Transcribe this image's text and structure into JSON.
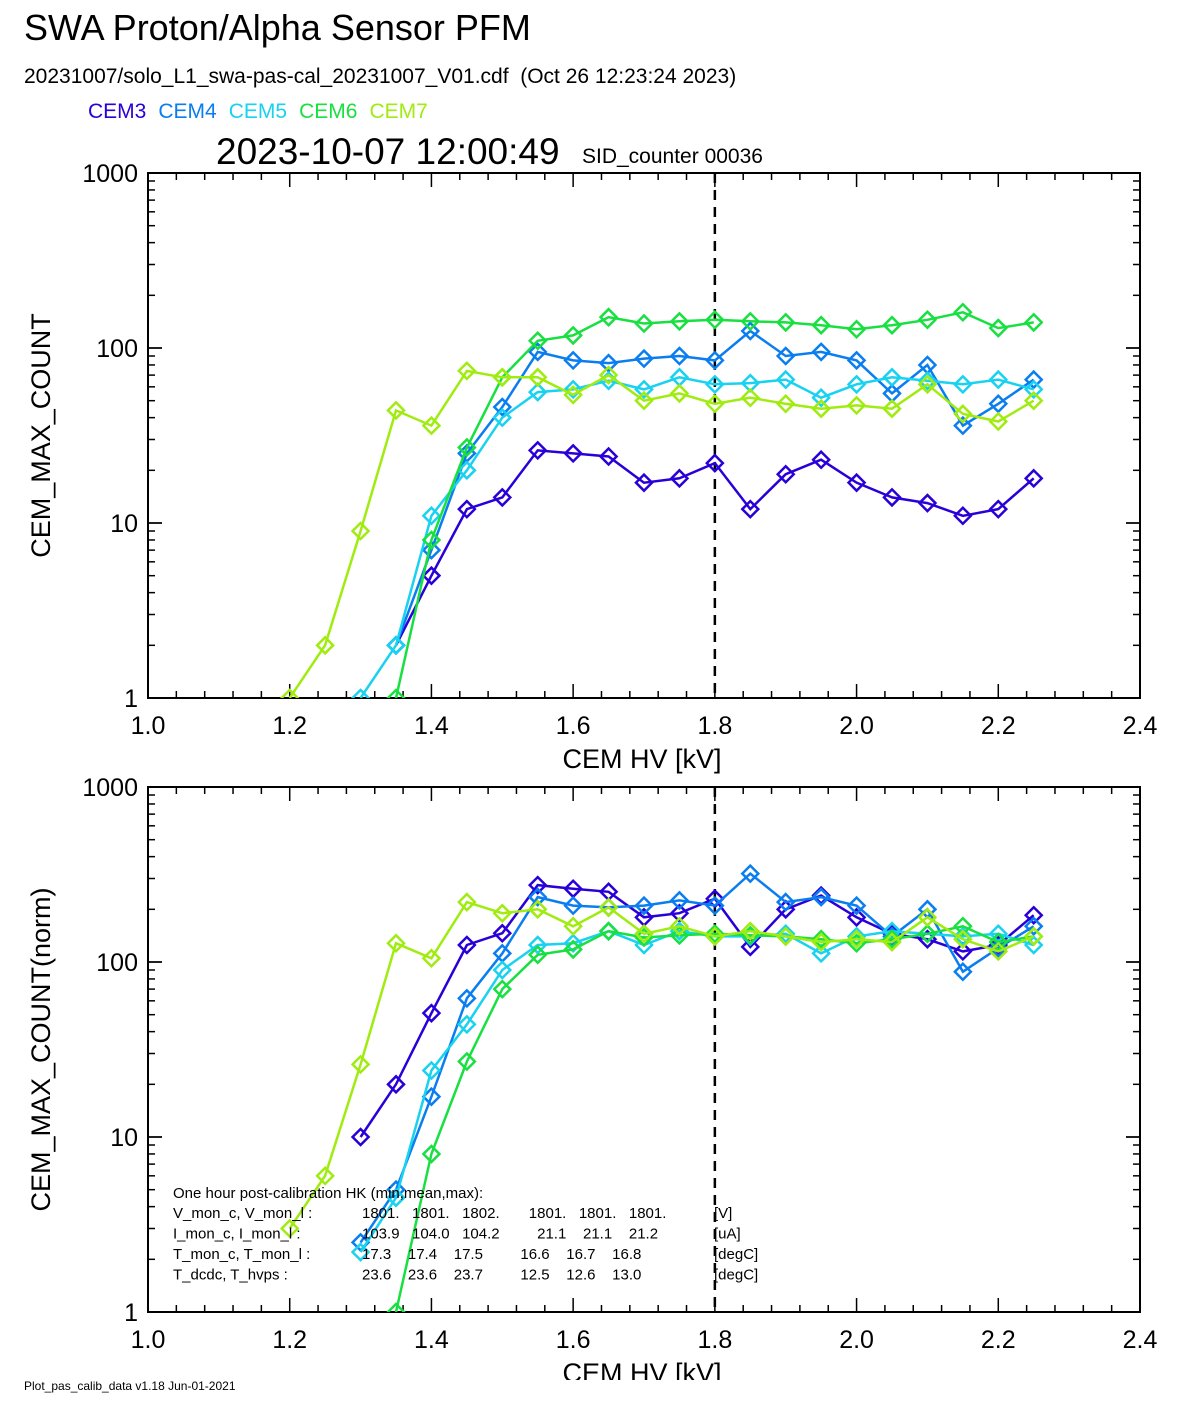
{
  "header": {
    "title": "SWA Proton/Alpha Sensor PFM",
    "subtitle": "20231007/solo_L1_swa-pas-cal_20231007_V01.cdf  (Oct 26 12:23:24 2023)",
    "timestamp": "2023-10-07 12:00:49",
    "sid_counter": "SID_counter 00036"
  },
  "legend": [
    {
      "name": "CEM3",
      "color": "#2a00d8"
    },
    {
      "name": "CEM4",
      "color": "#0a7ef0"
    },
    {
      "name": "CEM5",
      "color": "#18d2f0"
    },
    {
      "name": "CEM6",
      "color": "#18e040"
    },
    {
      "name": "CEM7",
      "color": "#a0ec10"
    }
  ],
  "info_box": {
    "heading": "One hour post-calibration HK (min,mean,max):",
    "rows": [
      {
        "label": "V_mon_c, V_mon_l :",
        "values": "1801.   1801.   1802.       1801.   1801.   1801.",
        "unit": "[V]"
      },
      {
        "label": "I_mon_c,  I_mon_l :",
        "values": "103.9   104.0   104.2         21.1    21.1    21.2",
        "unit": "[uA]"
      },
      {
        "label": "T_mon_c, T_mon_l :",
        "values": "17.3    17.4    17.5         16.6    16.7    16.8",
        "unit": "[degC]"
      },
      {
        "label": "T_dcdc,    T_hvps :",
        "values": "23.6    23.6    23.7         12.5    12.6    13.0",
        "unit": "[degC]"
      }
    ]
  },
  "footer": "Plot_pas_calib_data v1.18 Jun-01-2021",
  "chart_data": [
    {
      "type": "line",
      "log_y": true,
      "xlabel": "CEM HV [kV]",
      "ylabel": "CEM_MAX_COUNT",
      "xlim": [
        1.0,
        2.4
      ],
      "ylim": [
        1,
        1000
      ],
      "xticks": [
        "1.0",
        "1.2",
        "1.4",
        "1.6",
        "1.8",
        "2.0",
        "2.2",
        "2.4"
      ],
      "yticks": [
        "1",
        "10",
        "100",
        "1000"
      ],
      "marker": "diamond",
      "reference_line_x": 1.8,
      "x": [
        1.2,
        1.25,
        1.3,
        1.35,
        1.4,
        1.45,
        1.5,
        1.55,
        1.6,
        1.65,
        1.7,
        1.75,
        1.8,
        1.85,
        1.9,
        1.95,
        2.0,
        2.05,
        2.1,
        2.15,
        2.2,
        2.25
      ],
      "series": [
        {
          "name": "CEM3",
          "color": "#2a00d8",
          "values": [
            null,
            null,
            null,
            2,
            5,
            12,
            14,
            26,
            25,
            24,
            17,
            18,
            22,
            12,
            19,
            23,
            17,
            14,
            13,
            11,
            12,
            18
          ]
        },
        {
          "name": "CEM4",
          "color": "#0a7ef0",
          "values": [
            null,
            null,
            null,
            2,
            7,
            25,
            46,
            95,
            85,
            82,
            87,
            90,
            85,
            125,
            90,
            95,
            85,
            55,
            80,
            36,
            48,
            66
          ]
        },
        {
          "name": "CEM5",
          "color": "#18d2f0",
          "values": [
            null,
            null,
            1,
            2,
            11,
            20,
            40,
            56,
            58,
            65,
            58,
            68,
            62,
            63,
            66,
            52,
            62,
            68,
            65,
            62,
            66,
            58
          ]
        },
        {
          "name": "CEM6",
          "color": "#18e040",
          "values": [
            null,
            null,
            null,
            1,
            8,
            27,
            68,
            110,
            118,
            150,
            138,
            142,
            145,
            142,
            140,
            135,
            128,
            135,
            145,
            160,
            130,
            140
          ]
        },
        {
          "name": "CEM7",
          "color": "#a0ec10",
          "values": [
            1,
            2,
            9,
            44,
            36,
            74,
            68,
            68,
            54,
            70,
            50,
            55,
            48,
            52,
            48,
            45,
            47,
            45,
            62,
            42,
            38,
            50
          ]
        }
      ]
    },
    {
      "type": "line",
      "log_y": true,
      "xlabel": "CEM HV [kV]",
      "ylabel": "CEM_MAX_COUNT(norm)",
      "xlim": [
        1.0,
        2.4
      ],
      "ylim": [
        1,
        1000
      ],
      "xticks": [
        "1.0",
        "1.2",
        "1.4",
        "1.6",
        "1.8",
        "2.0",
        "2.2",
        "2.4"
      ],
      "yticks": [
        "1",
        "10",
        "100",
        "1000"
      ],
      "marker": "diamond",
      "reference_line_x": 1.8,
      "x": [
        1.2,
        1.25,
        1.3,
        1.35,
        1.4,
        1.45,
        1.5,
        1.55,
        1.6,
        1.65,
        1.7,
        1.75,
        1.8,
        1.85,
        1.9,
        1.95,
        2.0,
        2.05,
        2.1,
        2.15,
        2.2,
        2.25
      ],
      "series": [
        {
          "name": "CEM3",
          "color": "#2a00d8",
          "values": [
            null,
            null,
            10,
            20,
            51,
            125,
            146,
            275,
            262,
            252,
            180,
            190,
            230,
            122,
            200,
            240,
            180,
            145,
            135,
            115,
            125,
            185
          ]
        },
        {
          "name": "CEM4",
          "color": "#0a7ef0",
          "values": [
            null,
            null,
            2.5,
            5,
            17,
            62,
            112,
            235,
            210,
            205,
            210,
            225,
            210,
            320,
            220,
            235,
            210,
            140,
            200,
            88,
            120,
            160
          ]
        },
        {
          "name": "CEM5",
          "color": "#18d2f0",
          "values": [
            null,
            null,
            2.2,
            4.5,
            24,
            44,
            90,
            125,
            128,
            150,
            125,
            150,
            140,
            140,
            145,
            112,
            140,
            150,
            145,
            140,
            145,
            125
          ]
        },
        {
          "name": "CEM6",
          "color": "#18e040",
          "values": [
            null,
            null,
            null,
            1,
            8,
            27,
            70,
            110,
            118,
            150,
            138,
            142,
            145,
            142,
            140,
            135,
            128,
            135,
            145,
            160,
            130,
            140
          ]
        },
        {
          "name": "CEM7",
          "color": "#a0ec10",
          "values": [
            3,
            6,
            26,
            128,
            105,
            220,
            190,
            200,
            160,
            205,
            145,
            160,
            140,
            150,
            140,
            130,
            135,
            130,
            180,
            135,
            115,
            140
          ]
        }
      ]
    }
  ]
}
